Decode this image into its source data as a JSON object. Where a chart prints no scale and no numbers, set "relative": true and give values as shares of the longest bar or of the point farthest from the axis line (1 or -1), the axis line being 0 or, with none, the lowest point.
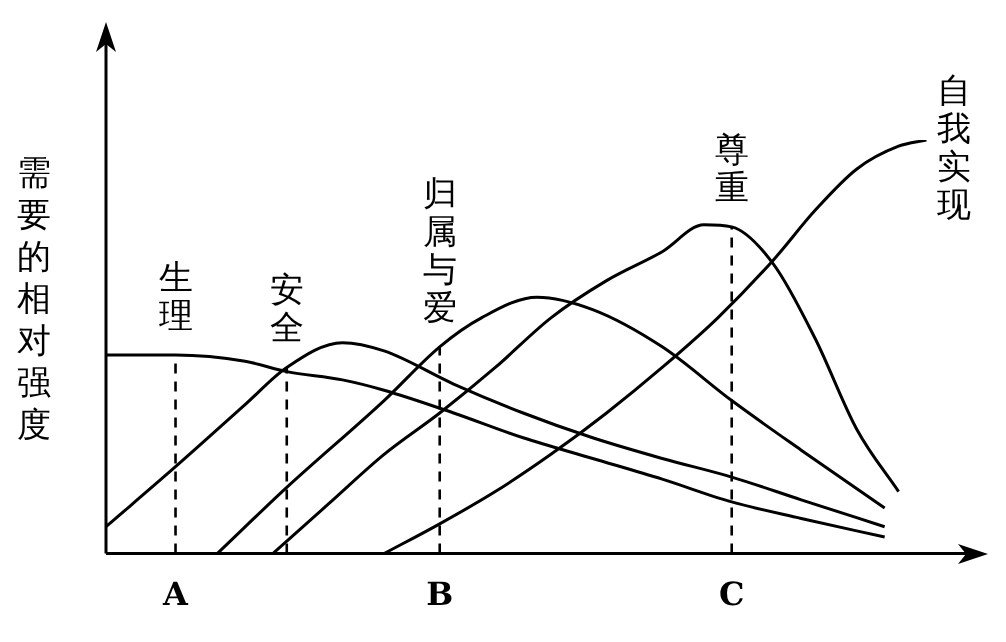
{
  "chart_data": {
    "type": "line",
    "relative": true,
    "ylabel": "需要的相对强度",
    "categories": [
      null,
      null,
      null,
      null,
      null,
      "A",
      null,
      null,
      null,
      null,
      null,
      null,
      null,
      null,
      null,
      null,
      null,
      null,
      null,
      null,
      null,
      null,
      null,
      null,
      "B",
      null,
      null,
      null,
      null,
      null,
      null,
      null,
      null,
      null,
      null,
      null,
      null,
      null,
      null,
      null,
      null,
      null,
      null,
      null,
      null,
      "C",
      null,
      null,
      null,
      null,
      null,
      null,
      null,
      null,
      null,
      null,
      null,
      null,
      null,
      null,
      null,
      null,
      null,
      null
    ],
    "grid": false,
    "legend": false,
    "marker": "none",
    "line_style": "solid",
    "ref_lines": [
      {
        "axis": "x",
        "value": "A",
        "line_style": "dashed"
      },
      {
        "axis": "x",
        "value": "B",
        "line_style": "dashed"
      },
      {
        "axis": "x",
        "value": "C",
        "line_style": "dashed"
      }
    ],
    "series": [
      {
        "name": "生理",
        "color": "#000000",
        "values": [
          0.48,
          null,
          null,
          null,
          null,
          0.48,
          null,
          null,
          null,
          null,
          0.465,
          null,
          null,
          0.44,
          null,
          null,
          null,
          0.42,
          null,
          null,
          0.395,
          null,
          null,
          null,
          null,
          0.34,
          null,
          null,
          null,
          null,
          0.28,
          null,
          null,
          null,
          null,
          0.23,
          null,
          null,
          null,
          null,
          0.18,
          null,
          null,
          null,
          null,
          0.125,
          null,
          null,
          null,
          null,
          0.085,
          null,
          null,
          null,
          null,
          null,
          0.04,
          null,
          null,
          null,
          null,
          null,
          null,
          null
        ]
      },
      {
        "name": "安全",
        "color": "#000000",
        "values": [
          0.065,
          null,
          null,
          null,
          null,
          0.21,
          null,
          null,
          null,
          null,
          0.36,
          null,
          null,
          0.45,
          null,
          null,
          null,
          0.51,
          null,
          null,
          0.49,
          null,
          null,
          null,
          null,
          0.41,
          null,
          null,
          null,
          null,
          0.34,
          null,
          null,
          null,
          null,
          0.28,
          null,
          null,
          null,
          null,
          0.23,
          null,
          null,
          null,
          null,
          0.185,
          null,
          null,
          null,
          null,
          0.13,
          null,
          null,
          null,
          null,
          null,
          0.065,
          null,
          null,
          null,
          null,
          null,
          null,
          null
        ]
      },
      {
        "name": "归属与爱",
        "color": "#000000",
        "values": [
          null,
          null,
          null,
          null,
          null,
          null,
          null,
          null,
          0,
          null,
          null,
          null,
          null,
          0.16,
          null,
          null,
          null,
          null,
          null,
          null,
          0.37,
          null,
          null,
          null,
          0.5,
          null,
          null,
          0.57,
          null,
          null,
          null,
          0.62,
          null,
          null,
          null,
          0.59,
          null,
          null,
          null,
          null,
          0.5,
          null,
          null,
          null,
          null,
          0.37,
          null,
          null,
          null,
          null,
          0.25,
          null,
          null,
          null,
          null,
          null,
          0.11,
          null,
          null,
          null,
          null,
          null,
          null,
          null
        ]
      },
      {
        "name": "尊重",
        "color": "#000000",
        "values": [
          null,
          null,
          null,
          null,
          null,
          null,
          null,
          null,
          null,
          null,
          null,
          null,
          0,
          null,
          null,
          null,
          0.12,
          null,
          null,
          null,
          0.24,
          null,
          null,
          null,
          0.34,
          null,
          null,
          null,
          0.45,
          null,
          null,
          null,
          0.57,
          null,
          null,
          null,
          0.66,
          null,
          null,
          null,
          0.73,
          null,
          null,
          0.795,
          null,
          0.79,
          null,
          null,
          0.7,
          null,
          null,
          0.52,
          null,
          null,
          0.3,
          null,
          null,
          0.15,
          null,
          null,
          null,
          null,
          null,
          null
        ]
      },
      {
        "name": "自我实现",
        "color": "#000000",
        "values": [
          null,
          null,
          null,
          null,
          null,
          null,
          null,
          null,
          null,
          null,
          null,
          null,
          null,
          null,
          null,
          null,
          null,
          null,
          null,
          null,
          0,
          null,
          null,
          null,
          0.072,
          null,
          null,
          null,
          0.15,
          null,
          null,
          null,
          0.24,
          null,
          null,
          null,
          0.34,
          null,
          null,
          null,
          0.45,
          null,
          null,
          null,
          0.57,
          null,
          null,
          null,
          0.71,
          null,
          null,
          0.83,
          null,
          null,
          0.93,
          null,
          null,
          0.985,
          null,
          1,
          null,
          null,
          null,
          null
        ]
      }
    ]
  }
}
